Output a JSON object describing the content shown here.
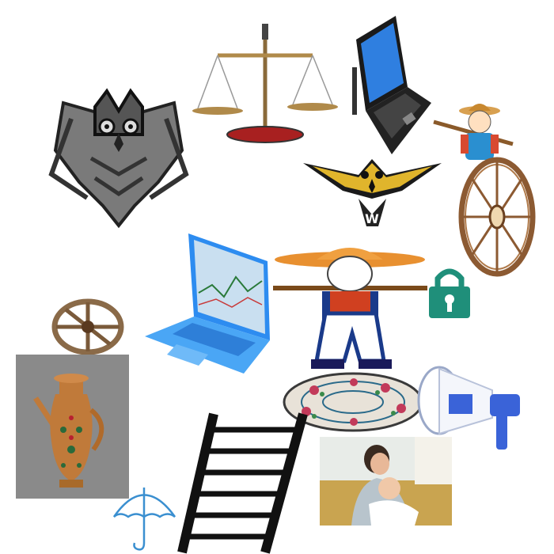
{
  "canvas": {
    "background": "#ffffff"
  },
  "items": [
    {
      "id": "owl-gray",
      "icon": "owl-icon",
      "color": "#6b6b6b"
    },
    {
      "id": "balance-scale",
      "icon": "balance-scale-icon",
      "color": "#b08a4a"
    },
    {
      "id": "laptop-black",
      "icon": "laptop-icon",
      "color": "#2a2a2a"
    },
    {
      "id": "farmer-small",
      "icon": "farmer-icon",
      "color": "#c8882f"
    },
    {
      "id": "owl-gold",
      "icon": "owl-emblem-icon",
      "color": "#e0b52c",
      "lettering": "W"
    },
    {
      "id": "wagon-wheel-large",
      "icon": "wagon-wheel-icon",
      "color": "#8c5a32"
    },
    {
      "id": "laptop-blue",
      "icon": "laptop-icon",
      "color": "#3a9df0"
    },
    {
      "id": "farmer-large",
      "icon": "farmer-icon",
      "color": "#1a3a8a"
    },
    {
      "id": "padlock-green",
      "icon": "padlock-icon",
      "color": "#1f8f7a"
    },
    {
      "id": "wagon-wheel-small",
      "icon": "wagon-wheel-icon",
      "color": "#8a6a48"
    },
    {
      "id": "woven-basket",
      "icon": "basket-icon",
      "color": "#c23a5a"
    },
    {
      "id": "megaphone",
      "icon": "megaphone-icon",
      "color": "#3a63d8"
    },
    {
      "id": "ornate-jug",
      "icon": "jug-icon",
      "color": "#c07a3a"
    },
    {
      "id": "umbrella",
      "icon": "umbrella-icon",
      "color": "#3a8fd0"
    },
    {
      "id": "ladder",
      "icon": "ladder-icon",
      "color": "#111111"
    },
    {
      "id": "mother-baby-photo",
      "icon": "mother-baby-icon",
      "color": "#c9a450"
    }
  ]
}
